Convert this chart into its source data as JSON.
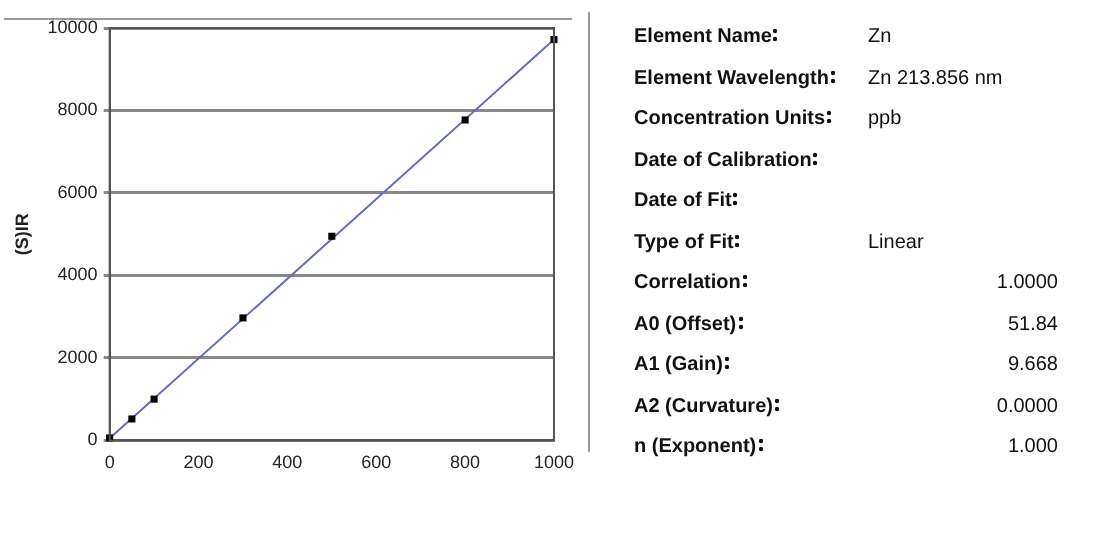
{
  "chart_data": [
    {
      "type": "scatter",
      "ylabel": "(S)IR",
      "xlim": [
        0,
        1000
      ],
      "xticks": [
        0,
        200,
        400,
        600,
        800,
        1000
      ],
      "ylim": [
        0,
        10000
      ],
      "yticks": [
        0,
        2000,
        4000,
        6000,
        8000,
        10000
      ],
      "grid": "y",
      "legend": false,
      "series": [
        {
          "type": "scatter",
          "marker": "square",
          "color": "#000000",
          "x": [
            0,
            50,
            100,
            300,
            500,
            800,
            1000
          ],
          "values": [
            60,
            520,
            1000,
            2970,
            4950,
            7770,
            9720
          ]
        },
        {
          "type": "line",
          "marker": "none",
          "color": "#6666cc",
          "x": [
            0,
            1000
          ],
          "values": [
            50,
            9720
          ]
        }
      ]
    },
    {
      "type": "other",
      "categories": [
        "Element Name",
        "Element Wavelength",
        "Concentration Units",
        "Date of Calibration",
        "Date of Fit",
        "Type of Fit",
        "Correlation",
        "A0 (Offset)",
        "A1 (Gain)",
        "A2 (Curvature)",
        "n (Exponent)"
      ],
      "value_labels": [
        "Zn",
        "Zn 213.856 nm",
        "ppb",
        null,
        null,
        "Linear",
        "1.0000",
        "51.84",
        "9.668",
        "0.0000",
        "1.000"
      ]
    }
  ]
}
